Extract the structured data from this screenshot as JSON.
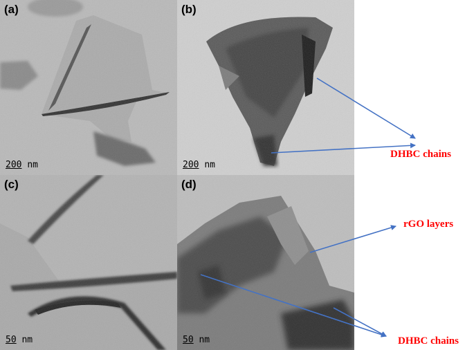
{
  "colors": {
    "annotation_text": "#ff0000",
    "arrow": "#4472c4"
  },
  "panels": [
    {
      "label": "(a)",
      "scale_value": "200",
      "scale_unit": "nm"
    },
    {
      "label": "(b)",
      "scale_value": "200",
      "scale_unit": "nm"
    },
    {
      "label": "(c)",
      "scale_value": "50",
      "scale_unit": "nm"
    },
    {
      "label": "(d)",
      "scale_value": "50",
      "scale_unit": "nm"
    }
  ],
  "annotations": {
    "dhbc_top": "DHBC chains",
    "rgo": "rGO layers",
    "dhbc_bottom": "DHBC chains"
  }
}
